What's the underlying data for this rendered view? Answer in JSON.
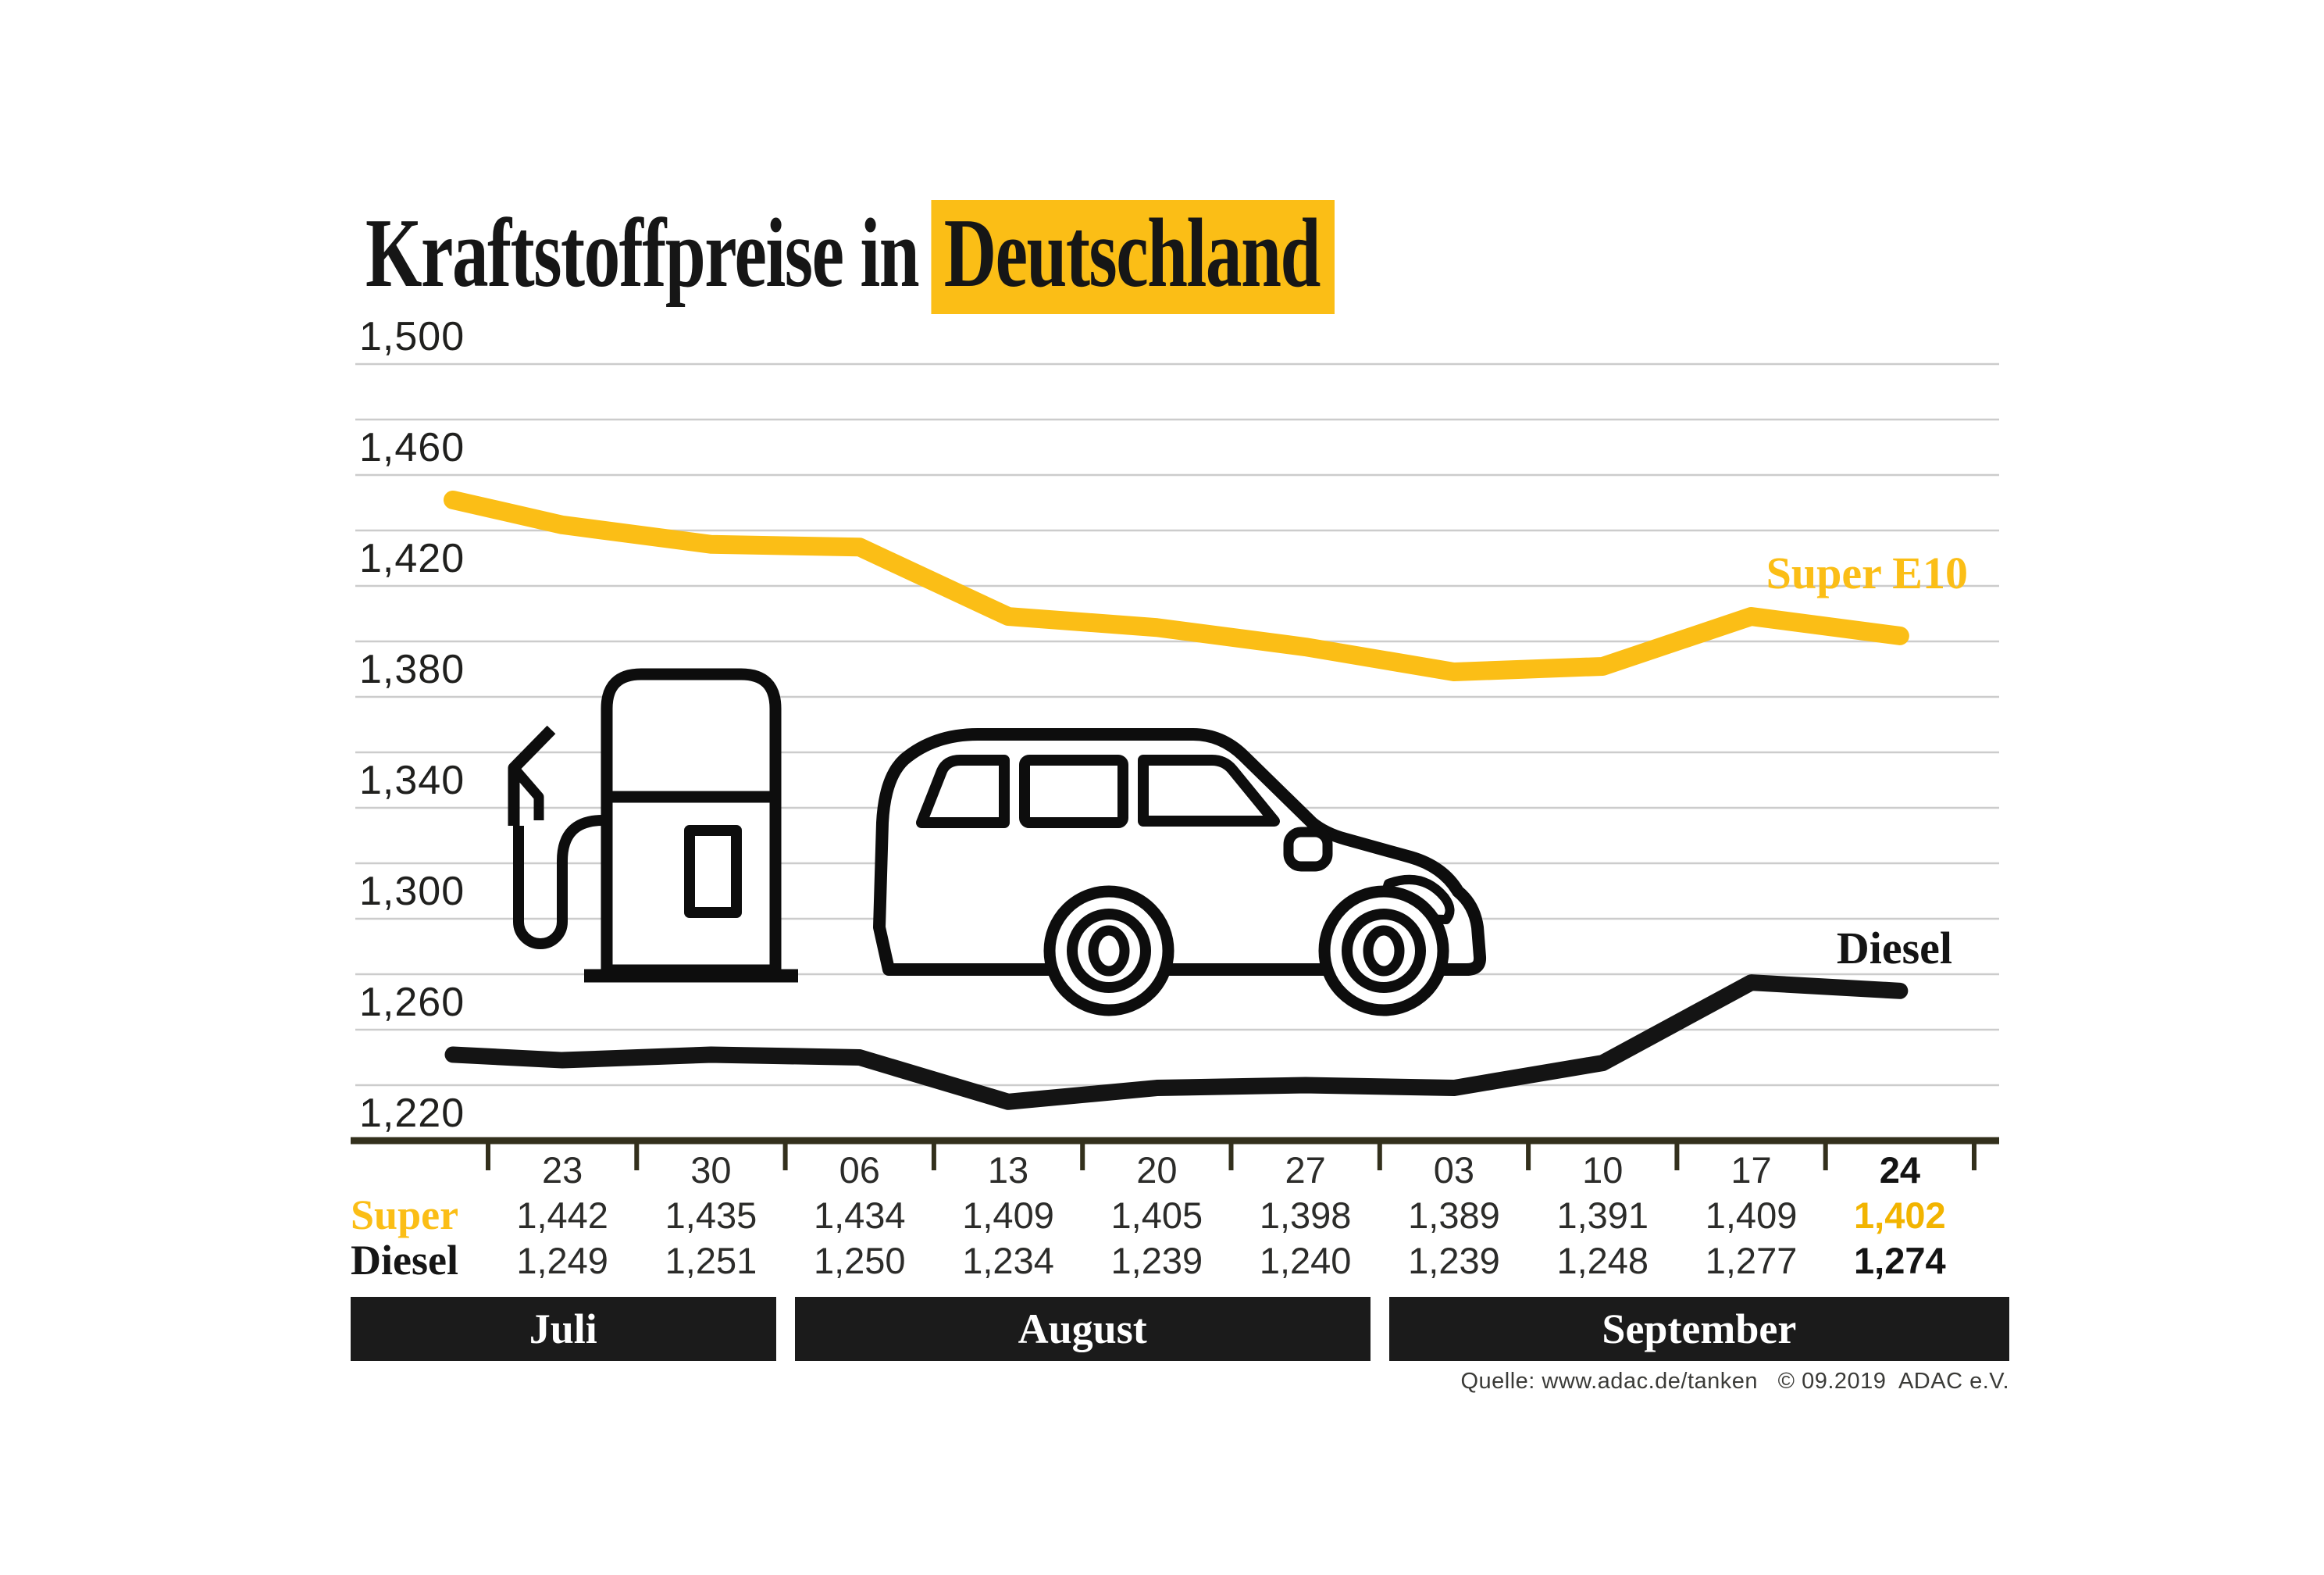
{
  "title": {
    "prefix": "Kraftstoffpreise in",
    "highlight": "Deutschland"
  },
  "colors": {
    "accent_yellow": "#FBBE16",
    "ink_black": "#141414",
    "grid_gray": "#cccccc",
    "axis_olive": "#33301c",
    "month_bar_black": "#1b1b1b"
  },
  "icons": {
    "pump": "fuel-pump-icon",
    "car": "car-icon"
  },
  "table": {
    "row_labels": {
      "super": "Super",
      "diesel": "Diesel"
    }
  },
  "source": {
    "text": "Quelle: www.adac.de/tanken   © 09.2019  ADAC e.V."
  },
  "chart_data": {
    "type": "line",
    "title": "Kraftstoffpreise in Deutschland",
    "x_tick_labels": [
      "23",
      "30",
      "06",
      "13",
      "20",
      "27",
      "03",
      "10",
      "17",
      "24"
    ],
    "months": [
      {
        "label": "Juli",
        "col_start": 0,
        "col_end": 1
      },
      {
        "label": "August",
        "col_start": 2,
        "col_end": 5
      },
      {
        "label": "September",
        "col_start": 6,
        "col_end": 9
      }
    ],
    "y_axis": {
      "min": 1220,
      "max": 1500,
      "grid_step": 20,
      "label_step": 40,
      "tick_labels": [
        "1,500",
        "1,460",
        "1,420",
        "1,380",
        "1,340",
        "1,300",
        "1,260",
        "1,220"
      ]
    },
    "series": [
      {
        "name": "Super",
        "chart_label": "Super E10",
        "color": "#FBBE16",
        "values": [
          "1,442",
          "1,435",
          "1,434",
          "1,409",
          "1,405",
          "1,398",
          "1,389",
          "1,391",
          "1,409",
          "1,402"
        ],
        "lead_in_estimate": "1,451"
      },
      {
        "name": "Diesel",
        "chart_label": "Diesel",
        "color": "#141414",
        "values": [
          "1,249",
          "1,251",
          "1,250",
          "1,234",
          "1,239",
          "1,240",
          "1,239",
          "1,248",
          "1,277",
          "1,274"
        ],
        "lead_in_estimate": "1,251"
      }
    ],
    "emphasized_col": 9,
    "grid": true,
    "legend_position": "inline-right"
  }
}
